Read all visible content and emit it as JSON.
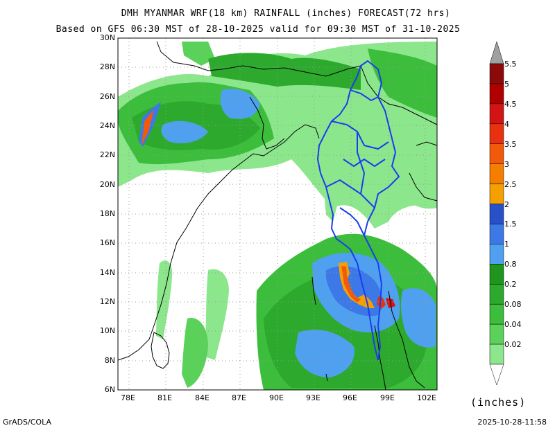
{
  "title_line1": "DMH MYANMAR WRF(18 km) RAINFALL (inches) FORECAST(72 hrs)",
  "title_line2": "Based on GFS 06:30 MST of 28-10-2025 valid for 09:30 MST of 31-10-2025",
  "lat_labels": [
    "30N",
    "28N",
    "26N",
    "24N",
    "22N",
    "20N",
    "18N",
    "16N",
    "14N",
    "12N",
    "10N",
    "8N",
    "6N"
  ],
  "lon_labels": [
    "78E",
    "81E",
    "84E",
    "87E",
    "90E",
    "93E",
    "96E",
    "99E",
    "102E"
  ],
  "colorbar": {
    "labels": [
      "5.5",
      "5",
      "4.5",
      "4",
      "3.5",
      "3",
      "2.5",
      "2",
      "1.5",
      "1",
      "0.8",
      "0.2",
      "0.08",
      "0.04",
      "0.02"
    ],
    "colors": [
      "#8c0a0a",
      "#b00000",
      "#d21414",
      "#e8320f",
      "#f05a0a",
      "#f57d00",
      "#f5a000",
      "#2850c8",
      "#3c78e6",
      "#50a0f0",
      "#1e961e",
      "#2daa2d",
      "#3cbe3c",
      "#5ad25a",
      "#8ce68c"
    ]
  },
  "units": "(inches)",
  "credit": "GrADS/COLA",
  "timestamp": "2025-10-28-11:58"
}
